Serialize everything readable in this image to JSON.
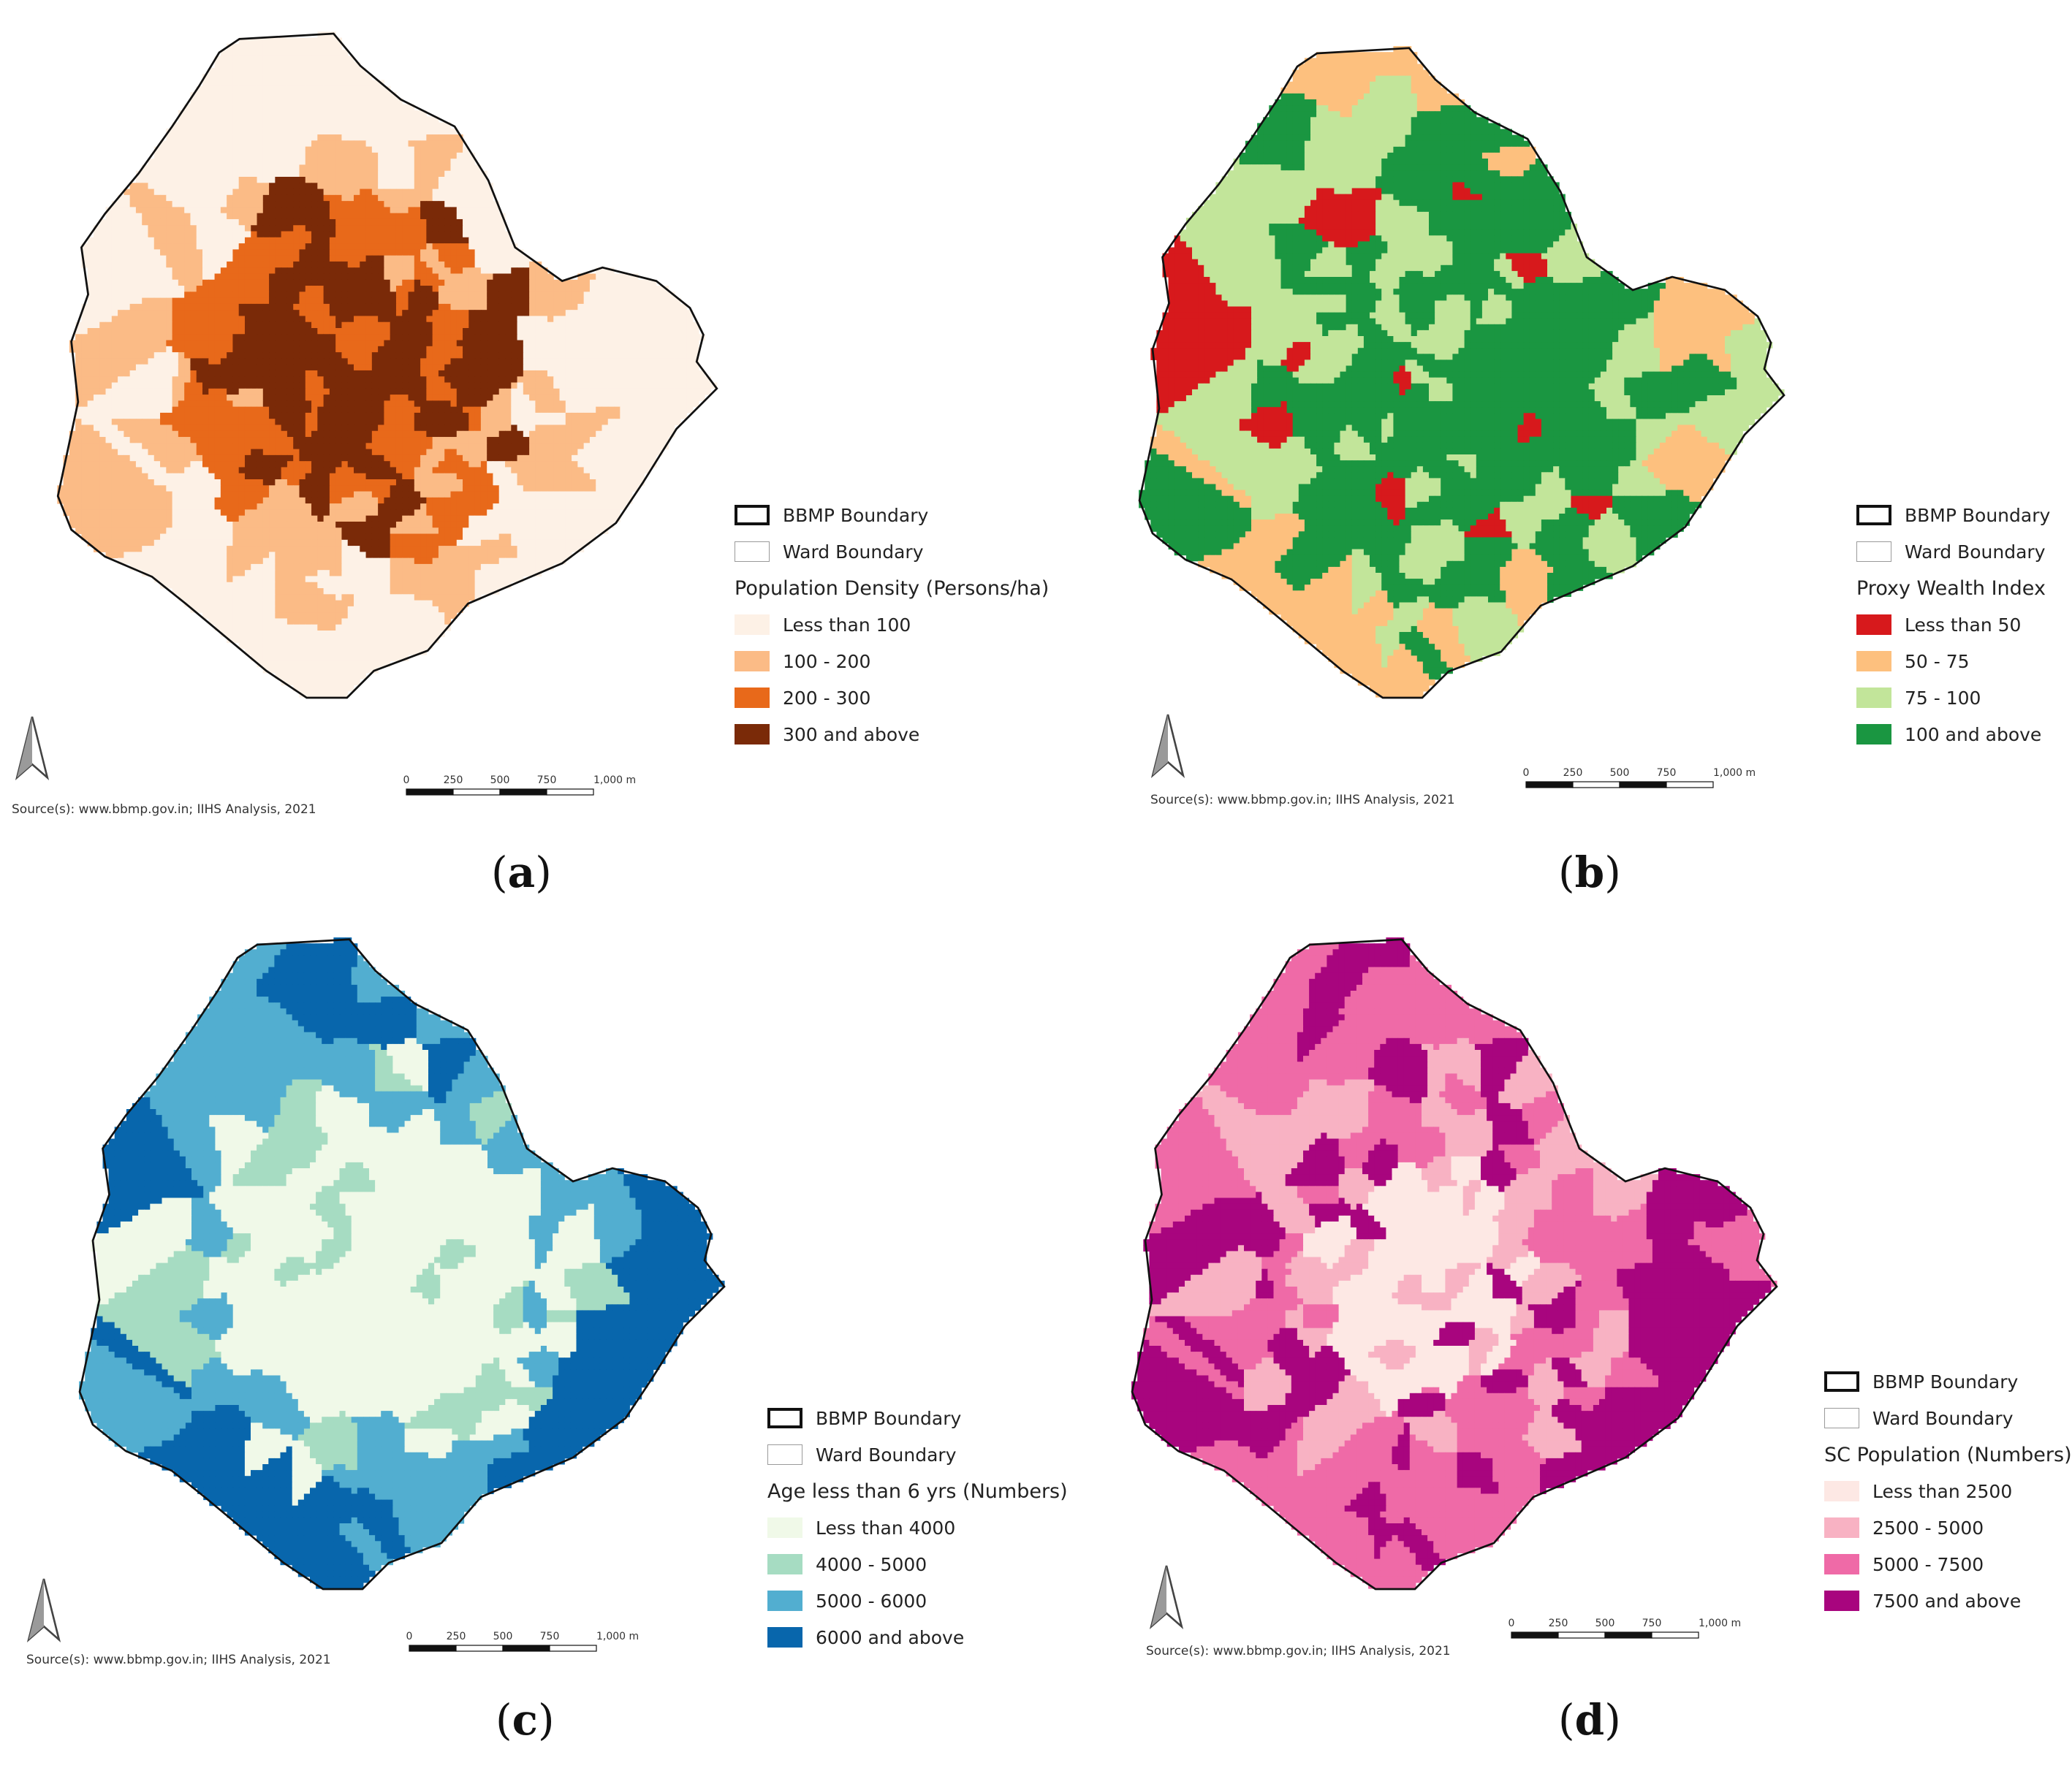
{
  "common": {
    "bbmp_boundary": "BBMP Boundary",
    "ward_boundary": "Ward Boundary",
    "source": "Source(s): www.bbmp.gov.in; IIHS Analysis, 2021",
    "scale_ticks": [
      "0",
      "250",
      "500",
      "750",
      "1,000 m"
    ],
    "icons": {
      "north_arrow": "north-arrow-icon"
    }
  },
  "panels": [
    {
      "id": "a",
      "caption_open": "(",
      "caption_letter": "a",
      "caption_close": ")",
      "legend_title": "Population Density (Persons/ha)",
      "classes": [
        {
          "label": "Less than 100",
          "color": "#fdf1e6"
        },
        {
          "label": "100 - 200",
          "color": "#fbbb86"
        },
        {
          "label": "200 - 300",
          "color": "#e8691a"
        },
        {
          "label": "300 and above",
          "color": "#7a2a08"
        }
      ]
    },
    {
      "id": "b",
      "caption_open": "(",
      "caption_letter": "b",
      "caption_close": ")",
      "legend_title": "Proxy Wealth Index",
      "classes": [
        {
          "label": "Less than 50",
          "color": "#d7191c"
        },
        {
          "label": "50 - 75",
          "color": "#fdc07e"
        },
        {
          "label": "75 - 100",
          "color": "#c2e59a"
        },
        {
          "label": "100 and above",
          "color": "#1a9641"
        }
      ]
    },
    {
      "id": "c",
      "caption_open": "(",
      "caption_letter": "c",
      "caption_close": ")",
      "legend_title": "Age less than 6 yrs (Numbers)",
      "classes": [
        {
          "label": "Less than 4000",
          "color": "#f0f9e8"
        },
        {
          "label": "4000 - 5000",
          "color": "#a6dcc2"
        },
        {
          "label": "5000 - 6000",
          "color": "#52aed0"
        },
        {
          "label": "6000 and above",
          "color": "#0866ac"
        }
      ]
    },
    {
      "id": "d",
      "caption_open": "(",
      "caption_letter": "d",
      "caption_close": ")",
      "legend_title": "SC Population (Numbers)",
      "classes": [
        {
          "label": "Less than 2500",
          "color": "#fde8e4"
        },
        {
          "label": "2500 - 5000",
          "color": "#f8b2c3"
        },
        {
          "label": "5000 - 7500",
          "color": "#ef6aa7"
        },
        {
          "label": "7500 and above",
          "color": "#a8057e"
        }
      ]
    }
  ]
}
